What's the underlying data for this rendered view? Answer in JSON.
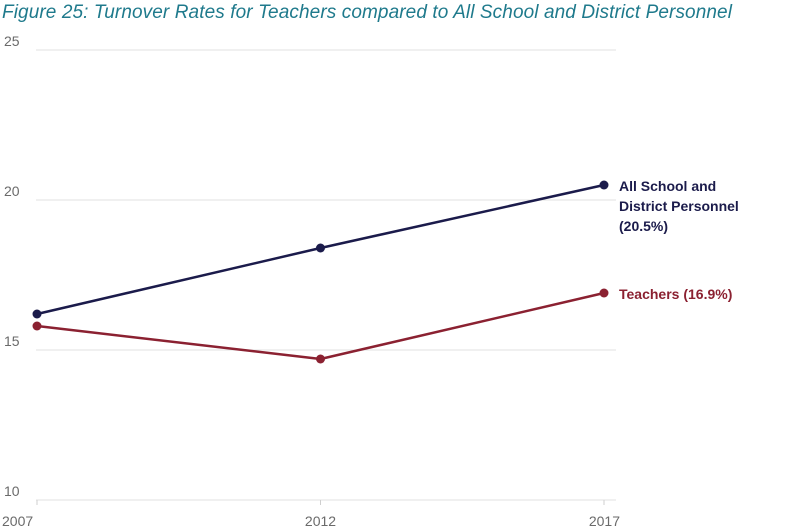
{
  "chart_data": {
    "type": "line",
    "title": "Figure 25: Turnover Rates for Teachers compared to All School and District Personnel",
    "xlabel": "",
    "ylabel": "",
    "x": [
      "2007",
      "2012",
      "2017"
    ],
    "ylim": [
      10,
      25
    ],
    "yticks": [
      10,
      15,
      20,
      25
    ],
    "grid": true,
    "series": [
      {
        "name": "All School and District Personnel",
        "label_lines": [
          "All School and",
          "District Personnel",
          "(20.5%)"
        ],
        "values": [
          16.2,
          18.4,
          20.5
        ],
        "color": "#1b1b4b"
      },
      {
        "name": "Teachers",
        "label_lines": [
          "Teachers (16.9%)"
        ],
        "values": [
          15.8,
          14.7,
          16.9
        ],
        "color": "#8b2131"
      }
    ],
    "colors": {
      "title": "#1f7a8c",
      "grid": "#e2e2e2",
      "tick_text": "#6a6a6a"
    }
  }
}
